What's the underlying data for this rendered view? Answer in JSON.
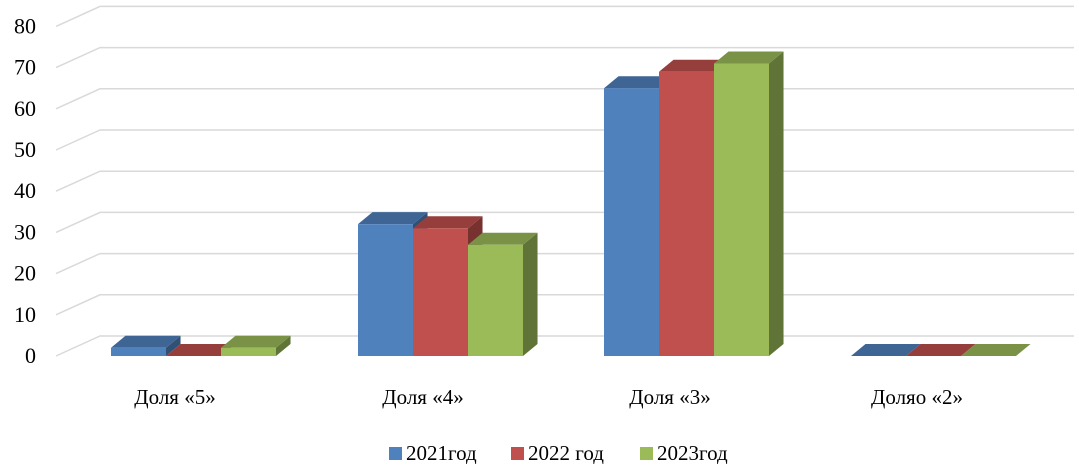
{
  "chart_data": {
    "type": "bar",
    "title": "",
    "xlabel": "",
    "ylabel": "",
    "categories": [
      "Доля «5»",
      "Доля «4»",
      "Доля «3»",
      "Доляо «2»"
    ],
    "series": [
      {
        "name": "2021год",
        "values": [
          2,
          32,
          65,
          0
        ],
        "color": "#4f81bd"
      },
      {
        "name": "2022 год",
        "values": [
          0,
          31,
          69,
          0
        ],
        "color": "#c0504d"
      },
      {
        "name": "2023год",
        "values": [
          2,
          27,
          71,
          0
        ],
        "color": "#9bbb59"
      }
    ],
    "ylim": [
      0,
      80
    ],
    "yticks": [
      0,
      10,
      20,
      30,
      40,
      50,
      60,
      70,
      80
    ],
    "grid": true,
    "legend_position": "bottom",
    "style": "3d-clustered-column"
  }
}
